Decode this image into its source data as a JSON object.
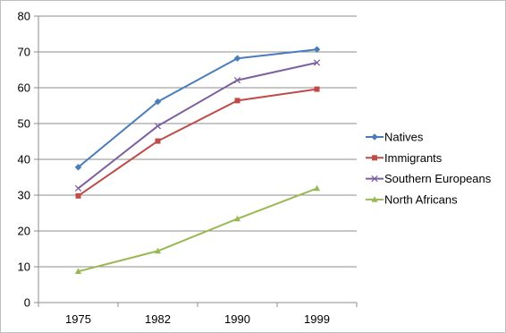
{
  "chart_data": {
    "type": "line",
    "title": "",
    "xlabel": "",
    "ylabel": "",
    "categories": [
      "1975",
      "1982",
      "1990",
      "1999"
    ],
    "ylim": [
      0,
      80
    ],
    "yticks": [
      0,
      10,
      20,
      30,
      40,
      50,
      60,
      70,
      80
    ],
    "grid": true,
    "legend_position": "right",
    "series": [
      {
        "name": "Natives",
        "values": [
          37.8,
          56.1,
          68.2,
          70.7
        ],
        "color": "#4a7ebb",
        "marker": "diamond"
      },
      {
        "name": "Immigrants",
        "values": [
          29.8,
          45.1,
          56.4,
          59.6
        ],
        "color": "#be4b48",
        "marker": "square"
      },
      {
        "name": "Southern Europeans",
        "values": [
          31.9,
          49.3,
          62.1,
          67.0
        ],
        "color": "#7d60a0",
        "marker": "x"
      },
      {
        "name": "North Africans",
        "values": [
          8.7,
          14.4,
          23.4,
          31.9
        ],
        "color": "#98b954",
        "marker": "triangle"
      }
    ]
  }
}
